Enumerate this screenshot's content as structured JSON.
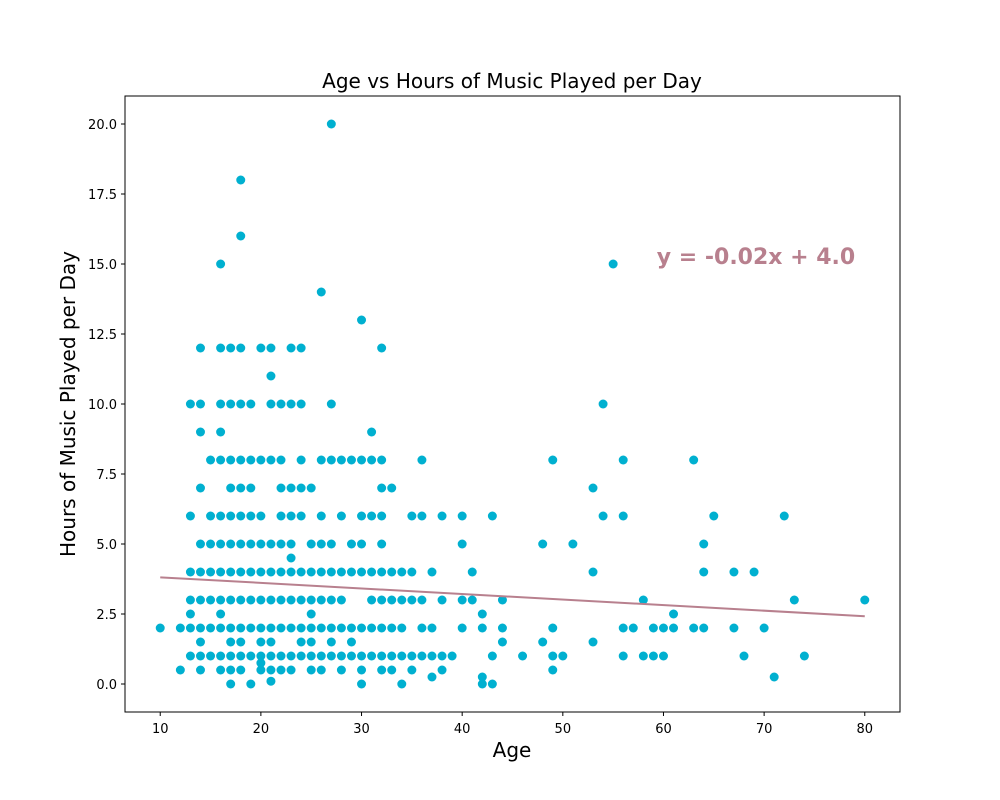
{
  "chart_data": {
    "type": "scatter",
    "title": "Age vs Hours of Music Played per Day",
    "xlabel": "Age",
    "ylabel": "Hours of Music Played per Day",
    "xlim": [
      6.5,
      83.5
    ],
    "ylim": [
      -1.0,
      21.0
    ],
    "x_ticks": [
      10,
      20,
      30,
      40,
      50,
      60,
      70,
      80
    ],
    "y_ticks": [
      0.0,
      2.5,
      5.0,
      7.5,
      10.0,
      12.5,
      15.0,
      17.5,
      20.0
    ],
    "x_tick_labels": [
      "10",
      "20",
      "30",
      "40",
      "50",
      "60",
      "70",
      "80"
    ],
    "y_tick_labels": [
      "0.0",
      "2.5",
      "5.0",
      "7.5",
      "10.0",
      "12.5",
      "15.0",
      "17.5",
      "20.0"
    ],
    "grid": false,
    "point_color": "#00b0d0",
    "line_color": "#b8808e",
    "annotation": "y = -0.02x + 4.0",
    "trendline": {
      "x": [
        10,
        80
      ],
      "y": [
        3.81,
        2.42
      ]
    },
    "points": [
      [
        10,
        2
      ],
      [
        12,
        2
      ],
      [
        12,
        0.5
      ],
      [
        13,
        10
      ],
      [
        13,
        6
      ],
      [
        13,
        4
      ],
      [
        13,
        3
      ],
      [
        13,
        2.5
      ],
      [
        13,
        2
      ],
      [
        13,
        1
      ],
      [
        14,
        12
      ],
      [
        14,
        10
      ],
      [
        14,
        9
      ],
      [
        14,
        7
      ],
      [
        14,
        5
      ],
      [
        14,
        4
      ],
      [
        14,
        3
      ],
      [
        14,
        2
      ],
      [
        14,
        1.5
      ],
      [
        14,
        1
      ],
      [
        14,
        0.5
      ],
      [
        15,
        8
      ],
      [
        15,
        6
      ],
      [
        15,
        5
      ],
      [
        15,
        4
      ],
      [
        15,
        3
      ],
      [
        15,
        2
      ],
      [
        15,
        1
      ],
      [
        16,
        15
      ],
      [
        16,
        12
      ],
      [
        16,
        10
      ],
      [
        16,
        9
      ],
      [
        16,
        8
      ],
      [
        16,
        6
      ],
      [
        16,
        5
      ],
      [
        16,
        4
      ],
      [
        16,
        3
      ],
      [
        16,
        2.5
      ],
      [
        16,
        2
      ],
      [
        16,
        1
      ],
      [
        16,
        0.5
      ],
      [
        17,
        12
      ],
      [
        17,
        10
      ],
      [
        17,
        8
      ],
      [
        17,
        7
      ],
      [
        17,
        6
      ],
      [
        17,
        5
      ],
      [
        17,
        4
      ],
      [
        17,
        3
      ],
      [
        17,
        2
      ],
      [
        17,
        1.5
      ],
      [
        17,
        1
      ],
      [
        17,
        0.5
      ],
      [
        17,
        0
      ],
      [
        18,
        18
      ],
      [
        18,
        16
      ],
      [
        18,
        12
      ],
      [
        18,
        10
      ],
      [
        18,
        8
      ],
      [
        18,
        7
      ],
      [
        18,
        6
      ],
      [
        18,
        5
      ],
      [
        18,
        4
      ],
      [
        18,
        3
      ],
      [
        18,
        2
      ],
      [
        18,
        1.5
      ],
      [
        18,
        1
      ],
      [
        18,
        0.5
      ],
      [
        19,
        10
      ],
      [
        19,
        8
      ],
      [
        19,
        7
      ],
      [
        19,
        6
      ],
      [
        19,
        5
      ],
      [
        19,
        4
      ],
      [
        19,
        3
      ],
      [
        19,
        2
      ],
      [
        19,
        1
      ],
      [
        19,
        0
      ],
      [
        20,
        12
      ],
      [
        20,
        8
      ],
      [
        20,
        6
      ],
      [
        20,
        5
      ],
      [
        20,
        4
      ],
      [
        20,
        3
      ],
      [
        20,
        2
      ],
      [
        20,
        1.5
      ],
      [
        20,
        1
      ],
      [
        20,
        0.75
      ],
      [
        20,
        0.5
      ],
      [
        21,
        12
      ],
      [
        21,
        11
      ],
      [
        21,
        10
      ],
      [
        21,
        8
      ],
      [
        21,
        5
      ],
      [
        21,
        4
      ],
      [
        21,
        3
      ],
      [
        21,
        2
      ],
      [
        21,
        1.5
      ],
      [
        21,
        1
      ],
      [
        21,
        0.5
      ],
      [
        21,
        0.1
      ],
      [
        22,
        10
      ],
      [
        22,
        8
      ],
      [
        22,
        7
      ],
      [
        22,
        6
      ],
      [
        22,
        5
      ],
      [
        22,
        4
      ],
      [
        22,
        3
      ],
      [
        22,
        2
      ],
      [
        22,
        1
      ],
      [
        22,
        0.5
      ],
      [
        23,
        12
      ],
      [
        23,
        10
      ],
      [
        23,
        7
      ],
      [
        23,
        6
      ],
      [
        23,
        5
      ],
      [
        23,
        4.5
      ],
      [
        23,
        4
      ],
      [
        23,
        3
      ],
      [
        23,
        2
      ],
      [
        23,
        1
      ],
      [
        23,
        0.5
      ],
      [
        24,
        12
      ],
      [
        24,
        10
      ],
      [
        24,
        8
      ],
      [
        24,
        7
      ],
      [
        24,
        6
      ],
      [
        24,
        4
      ],
      [
        24,
        3
      ],
      [
        24,
        2
      ],
      [
        24,
        1.5
      ],
      [
        24,
        1
      ],
      [
        25,
        7
      ],
      [
        25,
        5
      ],
      [
        25,
        4
      ],
      [
        25,
        3
      ],
      [
        25,
        2.5
      ],
      [
        25,
        2
      ],
      [
        25,
        1.5
      ],
      [
        25,
        1
      ],
      [
        25,
        0.5
      ],
      [
        26,
        14
      ],
      [
        26,
        8
      ],
      [
        26,
        6
      ],
      [
        26,
        5
      ],
      [
        26,
        4
      ],
      [
        26,
        3
      ],
      [
        26,
        2
      ],
      [
        26,
        1
      ],
      [
        26,
        0.5
      ],
      [
        27,
        20
      ],
      [
        27,
        10
      ],
      [
        27,
        8
      ],
      [
        27,
        5
      ],
      [
        27,
        4
      ],
      [
        27,
        3
      ],
      [
        27,
        2
      ],
      [
        27,
        1.5
      ],
      [
        27,
        1
      ],
      [
        28,
        8
      ],
      [
        28,
        6
      ],
      [
        28,
        4
      ],
      [
        28,
        3
      ],
      [
        28,
        2
      ],
      [
        28,
        1
      ],
      [
        28,
        0.5
      ],
      [
        29,
        8
      ],
      [
        29,
        5
      ],
      [
        29,
        4
      ],
      [
        29,
        2
      ],
      [
        29,
        1.5
      ],
      [
        29,
        1
      ],
      [
        30,
        13
      ],
      [
        30,
        8
      ],
      [
        30,
        6
      ],
      [
        30,
        5
      ],
      [
        30,
        4
      ],
      [
        30,
        2
      ],
      [
        30,
        1
      ],
      [
        30,
        0.5
      ],
      [
        30,
        0
      ],
      [
        31,
        9
      ],
      [
        31,
        8
      ],
      [
        31,
        6
      ],
      [
        31,
        4
      ],
      [
        31,
        3
      ],
      [
        31,
        2
      ],
      [
        31,
        1
      ],
      [
        32,
        12
      ],
      [
        32,
        8
      ],
      [
        32,
        7
      ],
      [
        32,
        6
      ],
      [
        32,
        5
      ],
      [
        32,
        4
      ],
      [
        32,
        3
      ],
      [
        32,
        2
      ],
      [
        32,
        1
      ],
      [
        32,
        0.5
      ],
      [
        33,
        7
      ],
      [
        33,
        4
      ],
      [
        33,
        3
      ],
      [
        33,
        2
      ],
      [
        33,
        1
      ],
      [
        33,
        0.5
      ],
      [
        34,
        4
      ],
      [
        34,
        3
      ],
      [
        34,
        2
      ],
      [
        34,
        1
      ],
      [
        34,
        0
      ],
      [
        35,
        6
      ],
      [
        35,
        4
      ],
      [
        35,
        3
      ],
      [
        35,
        1
      ],
      [
        35,
        0.5
      ],
      [
        36,
        8
      ],
      [
        36,
        6
      ],
      [
        36,
        3
      ],
      [
        36,
        2
      ],
      [
        36,
        1
      ],
      [
        37,
        4
      ],
      [
        37,
        2
      ],
      [
        37,
        1
      ],
      [
        37,
        0.25
      ],
      [
        38,
        6
      ],
      [
        38,
        3
      ],
      [
        38,
        1
      ],
      [
        38,
        0.5
      ],
      [
        39,
        1
      ],
      [
        40,
        6
      ],
      [
        40,
        5
      ],
      [
        40,
        3
      ],
      [
        40,
        2
      ],
      [
        41,
        4
      ],
      [
        41,
        3
      ],
      [
        42,
        2.5
      ],
      [
        42,
        2
      ],
      [
        42,
        0.25
      ],
      [
        42,
        0
      ],
      [
        43,
        6
      ],
      [
        43,
        1
      ],
      [
        43,
        0
      ],
      [
        44,
        3
      ],
      [
        44,
        2
      ],
      [
        44,
        1.5
      ],
      [
        46,
        1
      ],
      [
        48,
        5
      ],
      [
        48,
        1.5
      ],
      [
        49,
        8
      ],
      [
        49,
        2
      ],
      [
        49,
        1
      ],
      [
        49,
        0.5
      ],
      [
        50,
        1
      ],
      [
        51,
        5
      ],
      [
        53,
        7
      ],
      [
        53,
        4
      ],
      [
        53,
        1.5
      ],
      [
        54,
        10
      ],
      [
        54,
        6
      ],
      [
        55,
        15
      ],
      [
        56,
        8
      ],
      [
        56,
        6
      ],
      [
        56,
        2
      ],
      [
        56,
        1
      ],
      [
        57,
        2
      ],
      [
        58,
        3
      ],
      [
        58,
        1
      ],
      [
        59,
        2
      ],
      [
        59,
        1
      ],
      [
        60,
        2
      ],
      [
        60,
        1
      ],
      [
        61,
        2.5
      ],
      [
        61,
        2
      ],
      [
        63,
        8
      ],
      [
        63,
        2
      ],
      [
        64,
        5
      ],
      [
        64,
        4
      ],
      [
        64,
        2
      ],
      [
        65,
        6
      ],
      [
        67,
        4
      ],
      [
        67,
        2
      ],
      [
        68,
        1
      ],
      [
        69,
        4
      ],
      [
        70,
        2
      ],
      [
        71,
        0.25
      ],
      [
        72,
        6
      ],
      [
        73,
        3
      ],
      [
        74,
        1
      ],
      [
        80,
        3
      ]
    ]
  }
}
